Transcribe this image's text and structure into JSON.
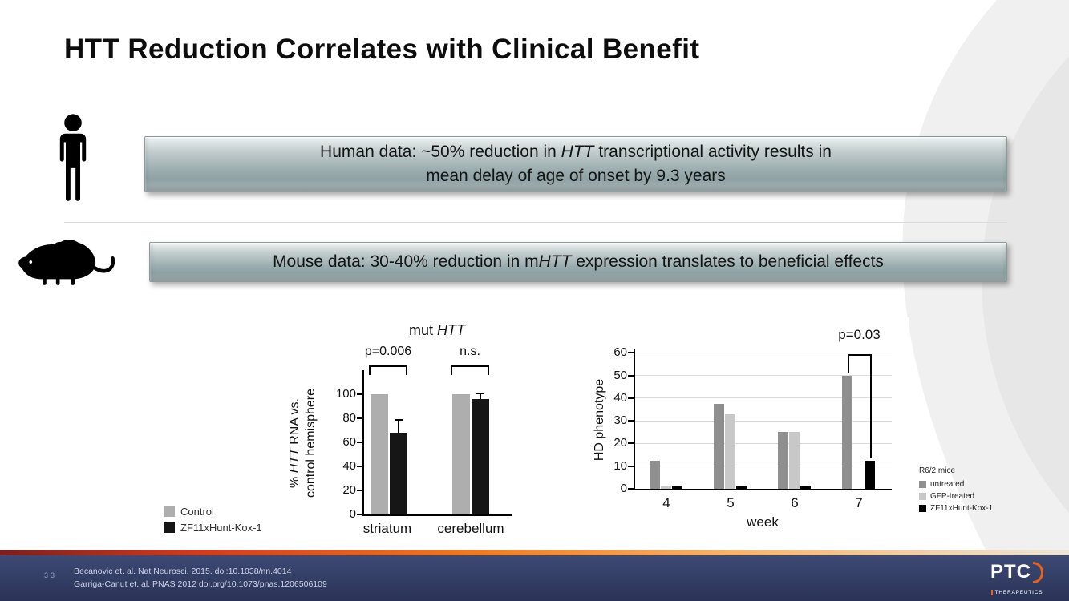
{
  "slide": {
    "title": "HTT Reduction Correlates with Clinical Benefit",
    "human_banner": {
      "line1_pre": "Human data: ~50% reduction in ",
      "line1_em": "HTT",
      "line1_post": " transcriptional activity results in",
      "line2": "mean delay of age of onset by 9.3 years"
    },
    "mouse_banner": {
      "pre": "Mouse data: 30-40% reduction in m",
      "em": "HTT",
      "post": " expression translates to beneficial effects"
    }
  },
  "chart_data": [
    {
      "type": "bar",
      "title": "mut HTT",
      "title_pre": "mut ",
      "title_em": "HTT",
      "ylabel": "% HTT RNA vs. control hemisphere",
      "ylabel_line1_pre": "% ",
      "ylabel_line1_em": "HTT",
      "ylabel_line1_post": " RNA vs.",
      "ylabel_line2": "control hemisphere",
      "categories": [
        "striatum",
        "cerebellum"
      ],
      "ylim": [
        0,
        100
      ],
      "yticks": [
        0,
        20,
        40,
        60,
        80,
        100
      ],
      "series": [
        {
          "name": "Control",
          "color": "#aeaeae",
          "values": [
            100,
            100
          ]
        },
        {
          "name": "ZF11xHunt-Kox-1",
          "color": "#161616",
          "values": [
            68,
            96
          ],
          "errors": [
            10,
            4
          ]
        }
      ],
      "annotations": [
        {
          "text": "p=0.006",
          "over": "striatum"
        },
        {
          "text": "n.s.",
          "over": "cerebellum"
        }
      ],
      "legend_position": "left-bottom",
      "grid": false
    },
    {
      "type": "bar",
      "xlabel": "week",
      "ylabel": "HD phenotype",
      "categories": [
        "4",
        "5",
        "6",
        "7"
      ],
      "ylim": [
        0,
        60
      ],
      "yticks": [
        0,
        10,
        20,
        30,
        40,
        50,
        60
      ],
      "series": [
        {
          "name": "untreated",
          "color": "#8f8f8f",
          "values": [
            12.5,
            37.5,
            25,
            50
          ]
        },
        {
          "name": "GFP-treated",
          "color": "#c8c8c8",
          "values": [
            1.5,
            33,
            25,
            0
          ]
        },
        {
          "name": "ZF11xHunt-Kox-1",
          "color": "#000000",
          "values": [
            1.5,
            1.5,
            1.5,
            12.5
          ]
        }
      ],
      "legend_title": "R6/2 mice",
      "legend_position": "right-bottom",
      "annotations": [
        {
          "text": "p=0.03",
          "over": "7"
        }
      ],
      "grid": true
    }
  ],
  "footer": {
    "page_number": "33",
    "citation_line1": "Becanovic et. al. Nat Neurosci. 2015. doi:10.1038/nn.4014",
    "citation_line2": "Garriga-Canut et. al. PNAS 2012 doi.org/10.1073/pnas.1206506109",
    "logo_text": "PTC",
    "logo_subtext": "THERAPEUTICS"
  },
  "colors": {
    "accent_orange": "#e8621d",
    "footer_navy": "#2e3a5e",
    "banner_gray": "#9aacae"
  }
}
